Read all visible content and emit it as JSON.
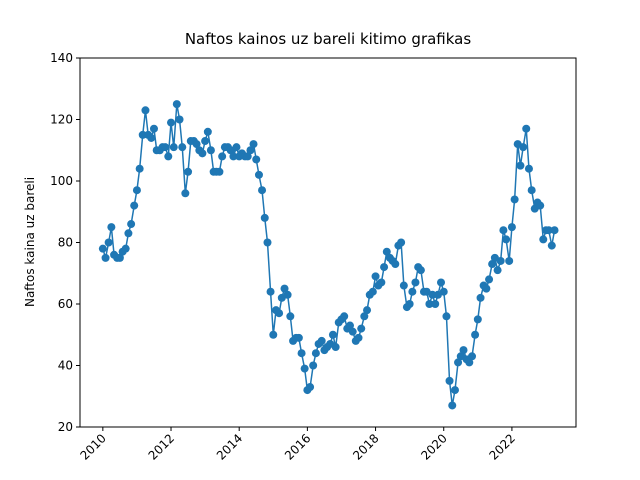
{
  "chart_data": {
    "type": "line",
    "title": "Naftos kainos uz bareli kitimo grafikas",
    "y_label": "Naftos kaina uz bareli",
    "x": [
      2010.0,
      2010.08,
      2010.17,
      2010.25,
      2010.33,
      2010.42,
      2010.5,
      2010.58,
      2010.67,
      2010.75,
      2010.83,
      2010.92,
      2011.0,
      2011.08,
      2011.17,
      2011.25,
      2011.33,
      2011.42,
      2011.5,
      2011.58,
      2011.67,
      2011.75,
      2011.83,
      2011.92,
      2012.0,
      2012.08,
      2012.17,
      2012.25,
      2012.33,
      2012.42,
      2012.5,
      2012.58,
      2012.67,
      2012.75,
      2012.83,
      2012.92,
      2013.0,
      2013.08,
      2013.17,
      2013.25,
      2013.33,
      2013.42,
      2013.5,
      2013.58,
      2013.67,
      2013.75,
      2013.83,
      2013.92,
      2014.0,
      2014.08,
      2014.17,
      2014.25,
      2014.33,
      2014.42,
      2014.5,
      2014.58,
      2014.67,
      2014.75,
      2014.83,
      2014.92,
      2015.0,
      2015.08,
      2015.17,
      2015.25,
      2015.33,
      2015.42,
      2015.5,
      2015.58,
      2015.67,
      2015.75,
      2015.83,
      2015.92,
      2016.0,
      2016.08,
      2016.17,
      2016.25,
      2016.33,
      2016.42,
      2016.5,
      2016.58,
      2016.67,
      2016.75,
      2016.83,
      2016.92,
      2017.0,
      2017.08,
      2017.17,
      2017.25,
      2017.33,
      2017.42,
      2017.5,
      2017.58,
      2017.67,
      2017.75,
      2017.83,
      2017.92,
      2018.0,
      2018.08,
      2018.17,
      2018.25,
      2018.33,
      2018.42,
      2018.5,
      2018.58,
      2018.67,
      2018.75,
      2018.83,
      2018.92,
      2019.0,
      2019.08,
      2019.17,
      2019.25,
      2019.33,
      2019.42,
      2019.5,
      2019.58,
      2019.67,
      2019.75,
      2019.83,
      2019.92,
      2020.0,
      2020.08,
      2020.17,
      2020.25,
      2020.33,
      2020.42,
      2020.5,
      2020.58,
      2020.67,
      2020.75,
      2020.83,
      2020.92,
      2021.0,
      2021.08,
      2021.17,
      2021.25,
      2021.33,
      2021.42,
      2021.5,
      2021.58,
      2021.67,
      2021.75,
      2021.83,
      2021.92,
      2022.0,
      2022.08,
      2022.17,
      2022.25,
      2022.33,
      2022.42,
      2022.5,
      2022.58,
      2022.67,
      2022.75,
      2022.83,
      2022.92,
      2023.0,
      2023.08,
      2023.17,
      2023.25
    ],
    "series": [
      {
        "color": "#1f77b4",
        "values": [
          78,
          75,
          80,
          85,
          76,
          75,
          75,
          77,
          78,
          83,
          86,
          92,
          97,
          104,
          115,
          123,
          115,
          114,
          117,
          110,
          110,
          111,
          111,
          108,
          119,
          111,
          125,
          120,
          111,
          96,
          103,
          113,
          113,
          112,
          110,
          109,
          113,
          116,
          110,
          103,
          103,
          103,
          108,
          111,
          111,
          110,
          108,
          111,
          108,
          109,
          108,
          108,
          110,
          112,
          107,
          102,
          97,
          88,
          80,
          64,
          50,
          58,
          57,
          62,
          65,
          63,
          56,
          48,
          49,
          49,
          44,
          39,
          32,
          33,
          40,
          44,
          47,
          48,
          45,
          46,
          47,
          50,
          46,
          54,
          55,
          56,
          52,
          53,
          51,
          48,
          49,
          52,
          56,
          58,
          63,
          64,
          69,
          66,
          67,
          72,
          77,
          75,
          74,
          73,
          79,
          80,
          66,
          59,
          60,
          64,
          67,
          72,
          71,
          64,
          64,
          60,
          63,
          60,
          63,
          67,
          64,
          56,
          35,
          27,
          32,
          41,
          43,
          45,
          42,
          41,
          43,
          50,
          55,
          62,
          66,
          65,
          68,
          73,
          75,
          71,
          74,
          84,
          81,
          74,
          85,
          94,
          112,
          105,
          111,
          117,
          104,
          97,
          91,
          93,
          92,
          81,
          84,
          84,
          79,
          84
        ]
      }
    ],
    "xlim": [
      2009.33,
      2023.88
    ],
    "ylim": [
      20,
      140
    ],
    "xticks": [
      2010,
      2012,
      2014,
      2016,
      2018,
      2020,
      2022
    ],
    "yticks": [
      20,
      40,
      60,
      80,
      100,
      120,
      140
    ]
  }
}
